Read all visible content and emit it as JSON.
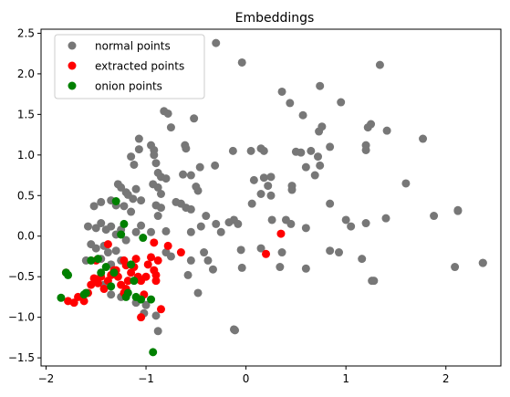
{
  "chart_data": {
    "type": "scatter",
    "title": "Embeddings",
    "xlabel": "",
    "ylabel": "",
    "xlim": [
      -2.05,
      2.55
    ],
    "ylim": [
      -1.6,
      2.55
    ],
    "x_ticks": [
      -2,
      -1,
      0,
      1,
      2
    ],
    "y_ticks": [
      -1.5,
      -1.0,
      -0.5,
      0.0,
      0.5,
      1.0,
      1.5,
      2.0,
      2.5
    ],
    "grid": false,
    "legend_position": "upper-left",
    "series": [
      {
        "name": "normal points",
        "color": "#777777",
        "points": [
          [
            -0.3,
            2.38
          ],
          [
            -0.04,
            2.14
          ],
          [
            1.34,
            2.11
          ],
          [
            0.74,
            1.85
          ],
          [
            0.36,
            1.78
          ],
          [
            0.44,
            1.64
          ],
          [
            0.95,
            1.65
          ],
          [
            0.57,
            1.49
          ],
          [
            -0.82,
            1.54
          ],
          [
            -0.78,
            1.51
          ],
          [
            -0.75,
            1.34
          ],
          [
            -0.52,
            1.45
          ],
          [
            1.22,
            1.34
          ],
          [
            1.25,
            1.38
          ],
          [
            0.73,
            1.29
          ],
          [
            0.76,
            1.35
          ],
          [
            1.41,
            1.3
          ],
          [
            -1.07,
            1.2
          ],
          [
            -1.07,
            1.07
          ],
          [
            -0.95,
            1.12
          ],
          [
            -0.92,
            1.06
          ],
          [
            -0.61,
            1.12
          ],
          [
            -0.6,
            1.08
          ],
          [
            -0.13,
            1.05
          ],
          [
            0.05,
            1.05
          ],
          [
            0.15,
            1.08
          ],
          [
            0.18,
            1.05
          ],
          [
            0.5,
            1.04
          ],
          [
            0.55,
            1.03
          ],
          [
            0.65,
            1.05
          ],
          [
            0.84,
            1.1
          ],
          [
            1.2,
            1.12
          ],
          [
            1.2,
            1.06
          ],
          [
            1.77,
            1.2
          ],
          [
            -0.31,
            0.87
          ],
          [
            -0.9,
            0.9
          ],
          [
            -0.88,
            0.78
          ],
          [
            -0.85,
            0.73
          ],
          [
            -0.8,
            0.71
          ],
          [
            -0.63,
            0.76
          ],
          [
            -0.46,
            0.85
          ],
          [
            -1.15,
            0.98
          ],
          [
            -1.12,
            0.88
          ],
          [
            -0.92,
            1.0
          ],
          [
            -0.55,
            0.75
          ],
          [
            0.08,
            0.69
          ],
          [
            0.18,
            0.72
          ],
          [
            0.25,
            0.73
          ],
          [
            0.6,
            0.85
          ],
          [
            0.72,
            0.98
          ],
          [
            0.69,
            0.75
          ],
          [
            0.74,
            0.87
          ],
          [
            0.22,
            0.62
          ],
          [
            -0.5,
            0.61
          ],
          [
            -0.48,
            0.56
          ],
          [
            0.46,
            0.62
          ],
          [
            0.46,
            0.57
          ],
          [
            0.15,
            0.52
          ],
          [
            0.25,
            0.5
          ],
          [
            -1.28,
            0.64
          ],
          [
            -1.25,
            0.6
          ],
          [
            -1.2,
            0.54
          ],
          [
            -1.1,
            0.58
          ],
          [
            -0.93,
            0.64
          ],
          [
            -0.88,
            0.6
          ],
          [
            -0.85,
            0.52
          ],
          [
            -1.18,
            0.51
          ],
          [
            -1.13,
            0.46
          ],
          [
            -1.05,
            0.44
          ],
          [
            -1.35,
            0.44
          ],
          [
            -1.45,
            0.42
          ],
          [
            -1.52,
            0.37
          ],
          [
            -1.3,
            0.38
          ],
          [
            -1.22,
            0.37
          ],
          [
            -1.15,
            0.3
          ],
          [
            -0.9,
            0.38
          ],
          [
            -0.85,
            0.35
          ],
          [
            -0.7,
            0.42
          ],
          [
            -0.65,
            0.4
          ],
          [
            -0.6,
            0.35
          ],
          [
            -0.55,
            0.33
          ],
          [
            -0.88,
            0.25
          ],
          [
            -1.5,
            0.1
          ],
          [
            -1.58,
            0.12
          ],
          [
            -1.45,
            0.16
          ],
          [
            -1.4,
            0.08
          ],
          [
            -1.35,
            0.12
          ],
          [
            -1.25,
            0.08
          ],
          [
            -1.1,
            0.05
          ],
          [
            -1.05,
            0.13
          ],
          [
            -1.3,
            0.02
          ],
          [
            -1.2,
            -0.05
          ],
          [
            -0.95,
            0.05
          ],
          [
            -0.8,
            0.06
          ],
          [
            -0.4,
            0.25
          ],
          [
            -0.45,
            0.12
          ],
          [
            -0.55,
            0.05
          ],
          [
            -0.3,
            0.15
          ],
          [
            -0.25,
            0.05
          ],
          [
            -0.17,
            0.17
          ],
          [
            -0.12,
            0.2
          ],
          [
            -0.08,
            0.15
          ],
          [
            0.06,
            0.4
          ],
          [
            0.26,
            0.2
          ],
          [
            0.4,
            0.2
          ],
          [
            0.45,
            0.15
          ],
          [
            0.6,
            0.1
          ],
          [
            0.84,
            0.4
          ],
          [
            1.0,
            0.2
          ],
          [
            1.05,
            0.12
          ],
          [
            1.2,
            0.16
          ],
          [
            1.4,
            0.22
          ],
          [
            1.6,
            0.65
          ],
          [
            1.88,
            0.25
          ],
          [
            2.12,
            0.32
          ],
          [
            2.12,
            0.31
          ],
          [
            -1.55,
            -0.1
          ],
          [
            -1.5,
            -0.15
          ],
          [
            -1.42,
            -0.12
          ],
          [
            -1.38,
            -0.2
          ],
          [
            -1.3,
            -0.18
          ],
          [
            -1.45,
            -0.28
          ],
          [
            -1.35,
            -0.35
          ],
          [
            -1.25,
            -0.3
          ],
          [
            -1.6,
            -0.3
          ],
          [
            -0.8,
            -0.2
          ],
          [
            -0.75,
            -0.25
          ],
          [
            -0.42,
            -0.2
          ],
          [
            -0.38,
            -0.3
          ],
          [
            -0.33,
            -0.41
          ],
          [
            -0.05,
            -0.17
          ],
          [
            -0.55,
            -0.3
          ],
          [
            -0.58,
            -0.48
          ],
          [
            0.15,
            -0.15
          ],
          [
            0.36,
            -0.2
          ],
          [
            0.34,
            -0.38
          ],
          [
            0.6,
            -0.4
          ],
          [
            0.84,
            -0.18
          ],
          [
            0.93,
            -0.2
          ],
          [
            1.16,
            -0.28
          ],
          [
            1.26,
            -0.55
          ],
          [
            1.28,
            -0.55
          ],
          [
            2.09,
            -0.38
          ],
          [
            2.37,
            -0.33
          ],
          [
            2.37,
            -0.33
          ],
          [
            -0.04,
            -0.39
          ],
          [
            -0.48,
            -0.7
          ],
          [
            -1.42,
            -0.6
          ],
          [
            -1.35,
            -0.72
          ],
          [
            -1.25,
            -0.75
          ],
          [
            -1.1,
            -0.82
          ],
          [
            -1.02,
            -0.95
          ],
          [
            -1.0,
            -0.85
          ],
          [
            -0.9,
            -0.98
          ],
          [
            -0.88,
            -1.17
          ],
          [
            -0.12,
            -1.15
          ],
          [
            -0.11,
            -1.16
          ]
        ]
      },
      {
        "name": "extracted points",
        "color": "#ff0000",
        "points": [
          [
            -1.78,
            -0.8
          ],
          [
            -1.72,
            -0.82
          ],
          [
            -1.68,
            -0.75
          ],
          [
            -1.62,
            -0.8
          ],
          [
            -1.58,
            -0.7
          ],
          [
            -1.55,
            -0.6
          ],
          [
            -1.52,
            -0.52
          ],
          [
            -1.48,
            -0.58
          ],
          [
            -1.45,
            -0.5
          ],
          [
            -1.42,
            -0.65
          ],
          [
            -1.38,
            -0.55
          ],
          [
            -1.35,
            -0.48
          ],
          [
            -1.3,
            -0.42
          ],
          [
            -1.28,
            -0.5
          ],
          [
            -1.25,
            -0.6
          ],
          [
            -1.22,
            -0.7
          ],
          [
            -1.2,
            -0.65
          ],
          [
            -1.18,
            -0.55
          ],
          [
            -1.15,
            -0.45
          ],
          [
            -1.12,
            -0.38
          ],
          [
            -1.1,
            -0.28
          ],
          [
            -1.08,
            -0.5
          ],
          [
            -1.05,
            -0.55
          ],
          [
            -1.02,
            -0.72
          ],
          [
            -1.0,
            -0.5
          ],
          [
            -0.98,
            -0.35
          ],
          [
            -0.95,
            -0.26
          ],
          [
            -0.92,
            -0.42
          ],
          [
            -0.9,
            -0.55
          ],
          [
            -0.88,
            -0.3
          ],
          [
            -0.85,
            -0.9
          ],
          [
            -1.05,
            -1.0
          ],
          [
            -0.78,
            -0.12
          ],
          [
            -0.65,
            -0.2
          ],
          [
            -0.92,
            -0.08
          ],
          [
            -1.38,
            -0.1
          ],
          [
            -1.5,
            -0.3
          ],
          [
            -1.8,
            -0.45
          ],
          [
            0.2,
            -0.22
          ],
          [
            0.35,
            0.03
          ],
          [
            -0.9,
            -0.48
          ],
          [
            -1.2,
            -0.36
          ],
          [
            -1.22,
            -0.3
          ],
          [
            -1.32,
            -0.42
          ]
        ]
      },
      {
        "name": "onion points",
        "color": "#008000",
        "points": [
          [
            -1.85,
            -0.76
          ],
          [
            -1.78,
            -0.48
          ],
          [
            -1.8,
            -0.45
          ],
          [
            -1.62,
            -0.72
          ],
          [
            -1.55,
            -0.3
          ],
          [
            -1.48,
            -0.28
          ],
          [
            -1.45,
            -0.45
          ],
          [
            -1.4,
            -0.38
          ],
          [
            -1.35,
            -0.62
          ],
          [
            -1.32,
            -0.45
          ],
          [
            -1.3,
            0.43
          ],
          [
            -1.25,
            0.02
          ],
          [
            -1.22,
            0.15
          ],
          [
            -1.15,
            -0.35
          ],
          [
            -1.12,
            -0.55
          ],
          [
            -1.1,
            -0.75
          ],
          [
            -1.05,
            -0.78
          ],
          [
            -1.03,
            -0.02
          ],
          [
            -0.95,
            -0.78
          ],
          [
            -0.93,
            -1.43
          ],
          [
            -1.18,
            -0.7
          ],
          [
            -1.2,
            -0.75
          ],
          [
            -1.6,
            -0.7
          ]
        ]
      }
    ]
  }
}
